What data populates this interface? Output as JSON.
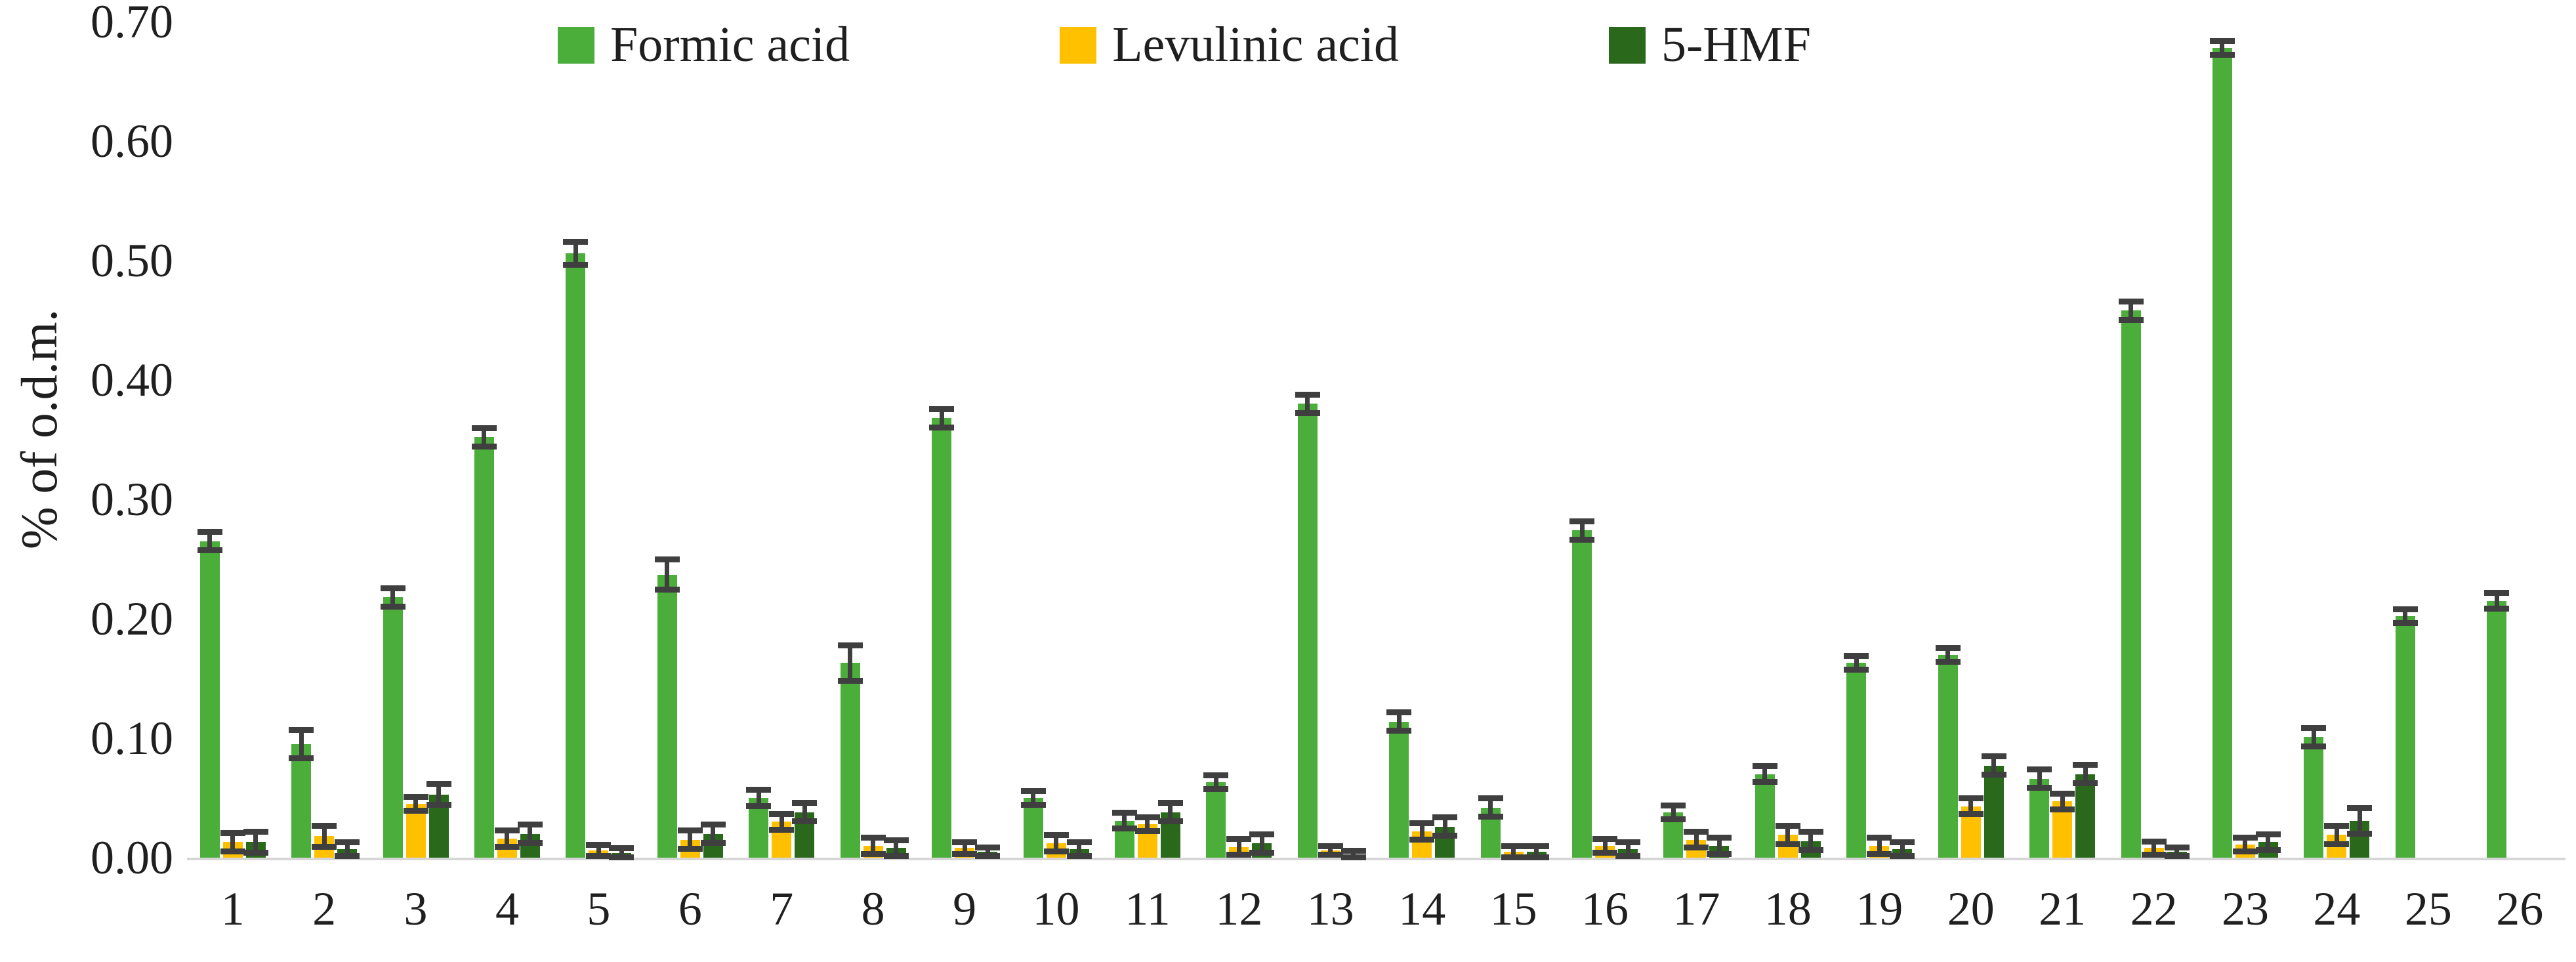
{
  "chart_data": {
    "type": "bar",
    "title": "",
    "xlabel": "",
    "ylabel": "% of o.d.m.",
    "ylim": [
      0,
      0.7
    ],
    "ytick_step": 0.1,
    "ytick_labels_top_to_bottom": [
      "0.70",
      "0.60",
      "0.50",
      "0.40",
      "0.30",
      "0.20",
      "0.10",
      "0.00"
    ],
    "grid": false,
    "legend_position": "top-center",
    "error_bars": true,
    "error_bar_color": "#3f3f3f",
    "axis_line_color": "#d6d6d6",
    "categories": [
      "1",
      "2",
      "3",
      "4",
      "5",
      "6",
      "7",
      "8",
      "9",
      "10",
      "11",
      "12",
      "13",
      "14",
      "15",
      "16",
      "17",
      "18",
      "19",
      "20",
      "21",
      "22",
      "23",
      "24",
      "25",
      "26"
    ],
    "series": [
      {
        "name": "Formic acid",
        "color": "#4bad3a",
        "values": [
          0.265,
          0.095,
          0.218,
          0.352,
          0.506,
          0.237,
          0.05,
          0.163,
          0.368,
          0.05,
          0.031,
          0.063,
          0.38,
          0.114,
          0.042,
          0.274,
          0.038,
          0.07,
          0.163,
          0.17,
          0.066,
          0.458,
          0.678,
          0.101,
          0.202,
          0.215
        ],
        "errors": [
          0.008,
          0.012,
          0.008,
          0.008,
          0.01,
          0.013,
          0.007,
          0.015,
          0.008,
          0.006,
          0.007,
          0.006,
          0.008,
          0.008,
          0.008,
          0.008,
          0.006,
          0.007,
          0.006,
          0.006,
          0.008,
          0.008,
          0.006,
          0.008,
          0.006,
          0.007
        ]
      },
      {
        "name": "Levulinic acid",
        "color": "#ffc000",
        "values": [
          0.013,
          0.018,
          0.045,
          0.016,
          0.006,
          0.015,
          0.03,
          0.01,
          0.008,
          0.012,
          0.028,
          0.009,
          0.006,
          0.022,
          0.005,
          0.01,
          0.015,
          0.019,
          0.01,
          0.043,
          0.047,
          0.008,
          0.011,
          0.019,
          0,
          0
        ],
        "errors": [
          0.008,
          0.009,
          0.006,
          0.007,
          0.005,
          0.008,
          0.007,
          0.007,
          0.005,
          0.007,
          0.006,
          0.007,
          0.004,
          0.007,
          0.005,
          0.006,
          0.007,
          0.008,
          0.007,
          0.007,
          0.007,
          0.006,
          0.006,
          0.008,
          0,
          0
        ]
      },
      {
        "name": "5-HMF",
        "color": "#2a681c",
        "values": [
          0.013,
          0.007,
          0.053,
          0.02,
          0.004,
          0.02,
          0.038,
          0.008,
          0.005,
          0.007,
          0.038,
          0.012,
          0.003,
          0.026,
          0.005,
          0.007,
          0.01,
          0.014,
          0.007,
          0.077,
          0.07,
          0.005,
          0.013,
          0.031,
          0,
          0
        ],
        "errors": [
          0.009,
          0.006,
          0.009,
          0.008,
          0.004,
          0.008,
          0.008,
          0.007,
          0.004,
          0.006,
          0.008,
          0.008,
          0.003,
          0.008,
          0.005,
          0.006,
          0.007,
          0.008,
          0.006,
          0.008,
          0.008,
          0.004,
          0.007,
          0.011,
          0,
          0
        ]
      }
    ]
  }
}
